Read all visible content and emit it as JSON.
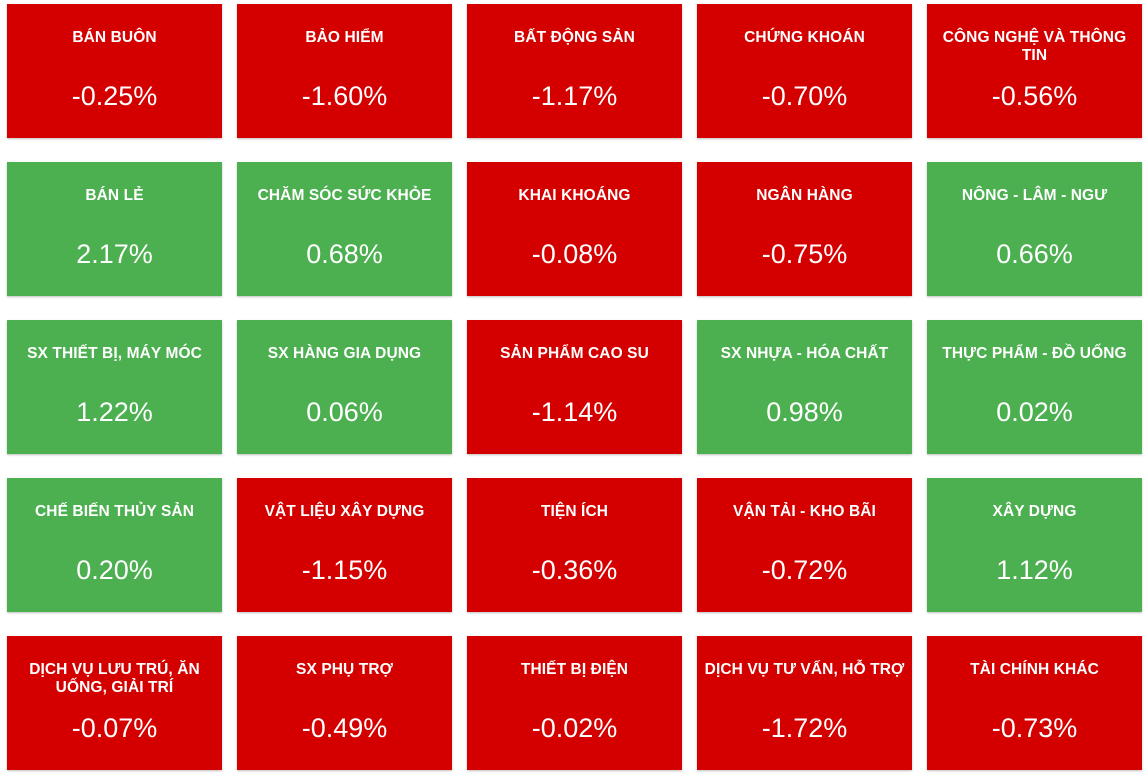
{
  "colors": {
    "down": "#d40000",
    "up": "#4caf50",
    "text": "#ffffff"
  },
  "sectors": [
    {
      "name": "BÁN BUÔN",
      "change": "-0.25%",
      "direction": "down"
    },
    {
      "name": "BẢO HIỂM",
      "change": "-1.60%",
      "direction": "down"
    },
    {
      "name": "BẤT ĐỘNG SẢN",
      "change": "-1.17%",
      "direction": "down"
    },
    {
      "name": "CHỨNG KHOÁN",
      "change": "-0.70%",
      "direction": "down"
    },
    {
      "name": "CÔNG NGHỆ VÀ THÔNG TIN",
      "change": "-0.56%",
      "direction": "down"
    },
    {
      "name": "BÁN LẺ",
      "change": "2.17%",
      "direction": "up"
    },
    {
      "name": "CHĂM SÓC SỨC KHỎE",
      "change": "0.68%",
      "direction": "up"
    },
    {
      "name": "KHAI KHOÁNG",
      "change": "-0.08%",
      "direction": "down"
    },
    {
      "name": "NGÂN HÀNG",
      "change": "-0.75%",
      "direction": "down"
    },
    {
      "name": "NÔNG - LÂM - NGƯ",
      "change": "0.66%",
      "direction": "up"
    },
    {
      "name": "SX THIẾT BỊ, MÁY MÓC",
      "change": "1.22%",
      "direction": "up"
    },
    {
      "name": "SX HÀNG GIA DỤNG",
      "change": "0.06%",
      "direction": "up"
    },
    {
      "name": "SẢN PHẨM CAO SU",
      "change": "-1.14%",
      "direction": "down"
    },
    {
      "name": "SX NHỰA - HÓA CHẤT",
      "change": "0.98%",
      "direction": "up"
    },
    {
      "name": "THỰC PHẨM - ĐỒ UỐNG",
      "change": "0.02%",
      "direction": "up"
    },
    {
      "name": "CHẾ BIẾN THỦY SẢN",
      "change": "0.20%",
      "direction": "up"
    },
    {
      "name": "VẬT LIỆU XÂY DỰNG",
      "change": "-1.15%",
      "direction": "down"
    },
    {
      "name": "TIỆN ÍCH",
      "change": "-0.36%",
      "direction": "down"
    },
    {
      "name": "VẬN TẢI - KHO BÃI",
      "change": "-0.72%",
      "direction": "down"
    },
    {
      "name": "XÂY DỰNG",
      "change": "1.12%",
      "direction": "up"
    },
    {
      "name": "DỊCH VỤ LƯU TRÚ, ĂN UỐNG, GIẢI TRÍ",
      "change": "-0.07%",
      "direction": "down"
    },
    {
      "name": "SX PHỤ TRỢ",
      "change": "-0.49%",
      "direction": "down"
    },
    {
      "name": "THIẾT BỊ ĐIỆN",
      "change": "-0.02%",
      "direction": "down"
    },
    {
      "name": "DỊCH VỤ TƯ VẤN, HỖ TRỢ",
      "change": "-1.72%",
      "direction": "down"
    },
    {
      "name": "TÀI CHÍNH KHÁC",
      "change": "-0.73%",
      "direction": "down"
    }
  ]
}
